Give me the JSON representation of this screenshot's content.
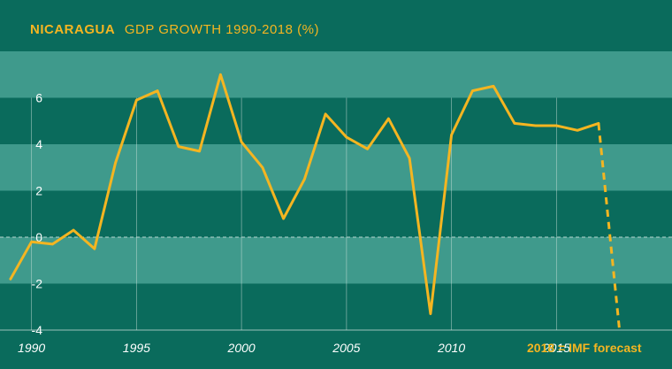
{
  "chart_data": {
    "type": "line",
    "title": {
      "country": "NICARAGUA",
      "rest": "GDP GROWTH 1990-2018 (%)"
    },
    "xlabel": "",
    "ylabel": "",
    "xlim": [
      1988.5,
      2020.5
    ],
    "ylim": [
      -4,
      8
    ],
    "yticks": [
      -4,
      -2,
      0,
      2,
      4,
      6
    ],
    "ytick_labels": [
      "-4",
      "-2",
      "0",
      "2",
      "4",
      "6"
    ],
    "xticks": [
      1990,
      1995,
      2000,
      2005,
      2010,
      2015
    ],
    "xtick_labels": [
      "1990",
      "1995",
      "2000",
      "2005",
      "2010",
      "2015"
    ],
    "series": [
      {
        "name": "GDP growth",
        "style": "solid",
        "x": [
          1989,
          1990,
          1991,
          1992,
          1993,
          1994,
          1995,
          1996,
          1997,
          1998,
          1999,
          2000,
          2001,
          2002,
          2003,
          2004,
          2005,
          2006,
          2007,
          2008,
          2009,
          2010,
          2011,
          2012,
          2013,
          2014,
          2015,
          2016,
          2017
        ],
        "values": [
          -1.8,
          -0.2,
          -0.3,
          0.3,
          -0.5,
          3.2,
          5.9,
          6.3,
          3.9,
          3.7,
          7.0,
          4.1,
          3.0,
          0.8,
          2.5,
          5.3,
          4.3,
          3.8,
          5.1,
          3.4,
          -3.3,
          4.4,
          6.3,
          6.5,
          4.9,
          4.8,
          4.8,
          4.6,
          4.9
        ]
      },
      {
        "name": "IMF forecast",
        "style": "dashed",
        "x": [
          2017,
          2018
        ],
        "values": [
          4.9,
          -4.0
        ]
      }
    ],
    "annotation": "2018 = IMF forecast",
    "colors": {
      "background": "#0a6b5c",
      "band": "#3f9a8c",
      "line": "#f4b521",
      "grid": "#d9e7e3",
      "text": "#ffffff"
    }
  }
}
